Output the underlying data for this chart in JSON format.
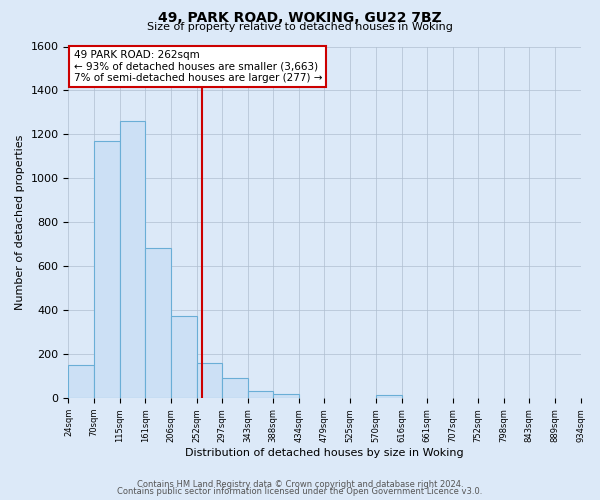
{
  "title": "49, PARK ROAD, WOKING, GU22 7BZ",
  "subtitle": "Size of property relative to detached houses in Woking",
  "xlabel": "Distribution of detached houses by size in Woking",
  "ylabel": "Number of detached properties",
  "footer_line1": "Contains HM Land Registry data © Crown copyright and database right 2024.",
  "footer_line2": "Contains public sector information licensed under the Open Government Licence v3.0.",
  "annotation_line1": "49 PARK ROAD: 262sqm",
  "annotation_line2": "← 93% of detached houses are smaller (3,663)",
  "annotation_line3": "7% of semi-detached houses are larger (277) →",
  "property_line_x": 262,
  "bar_edges": [
    24,
    70,
    115,
    161,
    206,
    252,
    297,
    343,
    388,
    434,
    479,
    525,
    570,
    616,
    661,
    707,
    752,
    798,
    843,
    889,
    934
  ],
  "bar_heights": [
    150,
    1170,
    1260,
    685,
    375,
    160,
    90,
    35,
    20,
    0,
    0,
    0,
    15,
    0,
    0,
    0,
    0,
    0,
    0,
    0
  ],
  "bar_color": "#cce0f5",
  "bar_edge_color": "#6aaed6",
  "bg_color": "#dce9f8",
  "plot_bg_color": "#dce9f8",
  "grid_color": "#b0bfd0",
  "vline_color": "#cc0000",
  "annotation_box_edge_color": "#cc0000",
  "ylim": [
    0,
    1600
  ],
  "yticks": [
    0,
    200,
    400,
    600,
    800,
    1000,
    1200,
    1400,
    1600
  ]
}
